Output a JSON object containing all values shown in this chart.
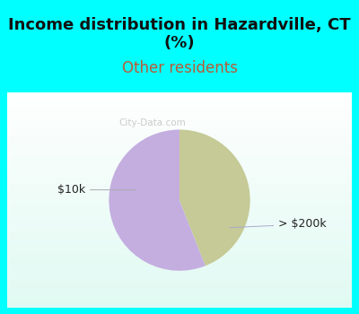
{
  "title": "Income distribution in Hazardville, CT\n(%)",
  "subtitle": "Other residents",
  "slices": [
    {
      "label": "> $200k",
      "value": 56,
      "color": "#c4aee0"
    },
    {
      "label": "$10k",
      "value": 44,
      "color": "#c5ca96"
    }
  ],
  "title_fontsize": 13,
  "subtitle_fontsize": 12,
  "title_color": "#111111",
  "subtitle_color": "#b85c38",
  "background_cyan": "#00ffff",
  "label_color": "#222222",
  "label_fontsize": 9,
  "watermark": "City-Data.com",
  "startangle": 90,
  "cyan_border": 8
}
